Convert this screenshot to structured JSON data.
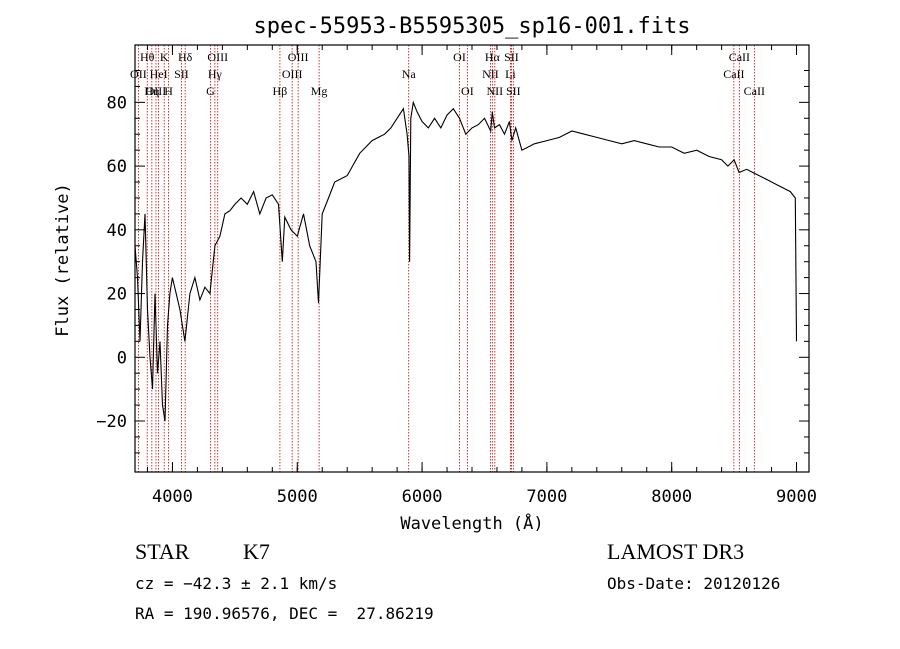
{
  "chart_data": {
    "type": "line",
    "title": "spec-55953-B5595305_sp16-001.fits",
    "xlabel": "Wavelength (Å)",
    "ylabel": "Flux (relative)",
    "xlim": [
      3700,
      9100
    ],
    "ylim": [
      -36,
      98
    ],
    "grid": false,
    "x_ticks": [
      "4000",
      "5000",
      "6000",
      "7000",
      "8000",
      "9000"
    ],
    "y_ticks": [
      "−20",
      "0",
      "20",
      "40",
      "60",
      "80"
    ],
    "series": [
      {
        "color": "#000000",
        "x": [
          3700,
          3720,
          3740,
          3760,
          3780,
          3800,
          3820,
          3840,
          3860,
          3880,
          3900,
          3920,
          3940,
          3960,
          3980,
          4000,
          4030,
          4060,
          4100,
          4140,
          4180,
          4220,
          4260,
          4300,
          4340,
          4380,
          4420,
          4460,
          4500,
          4550,
          4600,
          4650,
          4700,
          4750,
          4800,
          4850,
          4880,
          4900,
          4950,
          5000,
          5050,
          5100,
          5150,
          5170,
          5200,
          5250,
          5300,
          5400,
          5500,
          5600,
          5700,
          5750,
          5800,
          5850,
          5880,
          5895,
          5900,
          5910,
          5930,
          5960,
          6000,
          6050,
          6100,
          6150,
          6200,
          6250,
          6300,
          6350,
          6400,
          6450,
          6500,
          6550,
          6563,
          6580,
          6620,
          6660,
          6700,
          6720,
          6750,
          6800,
          6900,
          7000,
          7100,
          7200,
          7300,
          7400,
          7500,
          7600,
          7700,
          7800,
          7900,
          8000,
          8100,
          8200,
          8300,
          8400,
          8450,
          8500,
          8540,
          8600,
          8650,
          8700,
          8750,
          8800,
          8850,
          8900,
          8950,
          8990,
          9000
        ],
        "y": [
          35,
          25,
          5,
          30,
          45,
          15,
          0,
          -10,
          20,
          -5,
          5,
          -15,
          -20,
          10,
          20,
          25,
          20,
          15,
          5,
          20,
          25,
          18,
          22,
          20,
          35,
          38,
          45,
          46,
          48,
          50,
          48,
          52,
          45,
          50,
          51,
          48,
          30,
          44,
          40,
          38,
          45,
          35,
          30,
          17,
          45,
          50,
          55,
          57,
          64,
          68,
          70,
          72,
          75,
          78,
          70,
          63,
          30,
          75,
          80,
          77,
          74,
          72,
          75,
          72,
          76,
          78,
          75,
          70,
          72,
          73,
          75,
          71,
          77,
          72,
          73,
          70,
          74,
          68,
          72,
          65,
          67,
          68,
          69,
          71,
          70,
          69,
          68,
          67,
          68,
          67,
          66,
          66,
          64,
          65,
          63,
          62,
          60,
          62,
          58,
          59,
          58,
          57,
          56,
          55,
          54,
          53,
          52,
          50,
          5
        ]
      }
    ],
    "line_markers": [
      {
        "label": "Hθ",
        "x": 3798,
        "row": 0
      },
      {
        "label": "OII",
        "x": 3727,
        "row": 1
      },
      {
        "label": "OIII",
        "x": 3868,
        "row": 2
      },
      {
        "label": "K",
        "x": 3934,
        "row": 0
      },
      {
        "label": "HeI",
        "x": 3889,
        "row": 1
      },
      {
        "label": "Hη",
        "x": 3835,
        "row": 2
      },
      {
        "label": "SII",
        "x": 4072,
        "row": 1
      },
      {
        "label": "H",
        "x": 3969,
        "row": 2
      },
      {
        "label": "Hδ",
        "x": 4102,
        "row": 0
      },
      {
        "label": "OIII",
        "x": 4363,
        "row": 0
      },
      {
        "label": "Hγ",
        "x": 4340,
        "row": 1
      },
      {
        "label": "G",
        "x": 4305,
        "row": 2
      },
      {
        "label": "Hβ",
        "x": 4861,
        "row": 2
      },
      {
        "label": "OIII",
        "x": 5007,
        "row": 0
      },
      {
        "label": "OIII",
        "x": 4959,
        "row": 1
      },
      {
        "label": "Mg",
        "x": 5175,
        "row": 2
      },
      {
        "label": "Na",
        "x": 5893,
        "row": 1
      },
      {
        "label": "OI",
        "x": 6300,
        "row": 0
      },
      {
        "label": "OI",
        "x": 6363,
        "row": 2
      },
      {
        "label": "Hα",
        "x": 6563,
        "row": 0
      },
      {
        "label": "NII",
        "x": 6548,
        "row": 1
      },
      {
        "label": "NII",
        "x": 6583,
        "row": 2
      },
      {
        "label": "SII",
        "x": 6716,
        "row": 0
      },
      {
        "label": "Li",
        "x": 6708,
        "row": 1
      },
      {
        "label": "SII",
        "x": 6731,
        "row": 2
      },
      {
        "label": "CaII",
        "x": 8542,
        "row": 0
      },
      {
        "label": "CaII",
        "x": 8498,
        "row": 1
      },
      {
        "label": "CaII",
        "x": 8662,
        "row": 2
      }
    ],
    "marker_color": "#cc0000"
  },
  "info": {
    "object_type": "STAR",
    "subclass": "K7",
    "redshift": "cz = −42.3 ± 2.1 km/s",
    "coords": "RA = 190.96576, DEC =  27.86219",
    "survey": "LAMOST DR3",
    "obs_date": "Obs-Date: 20120126"
  }
}
